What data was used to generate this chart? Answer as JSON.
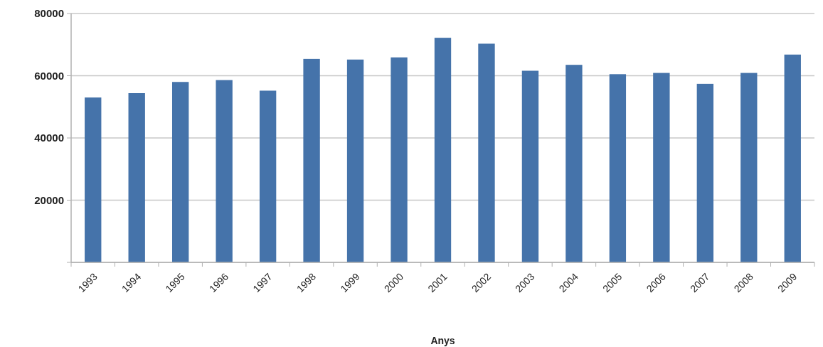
{
  "chart_data": {
    "type": "bar",
    "xlabel": "Anys",
    "categories": [
      "1993",
      "1994",
      "1995",
      "1996",
      "1997",
      "1998",
      "1999",
      "2000",
      "2001",
      "2002",
      "2003",
      "2004",
      "2005",
      "2006",
      "2007",
      "2008",
      "2009"
    ],
    "values": [
      53000,
      54400,
      58000,
      58600,
      55200,
      65400,
      65200,
      65900,
      72200,
      70300,
      61600,
      63500,
      60500,
      60900,
      57400,
      60900,
      66800
    ],
    "color": "#4573aa",
    "ylim": [
      0,
      80000
    ],
    "yticks": [
      {
        "value": 0,
        "label": null
      },
      20000,
      40000,
      60000,
      80000
    ],
    "grid": "y"
  }
}
